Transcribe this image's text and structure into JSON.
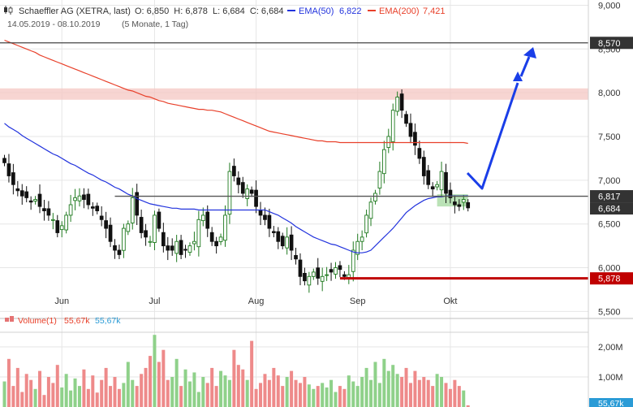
{
  "header": {
    "icon": "candlestick-chart-icon",
    "instrument": "Schaeffler AG (XETRA, last)",
    "ohlc": "O: 6,850  H: 6,878  L: 6,684  C: 6,684",
    "ema50_label": "EMA(50)",
    "ema50_value": "6,822",
    "ema200_label": "EMA(200)",
    "ema200_value": "7,421",
    "date_range": "14.05.2019 - 08.10.2019",
    "period": "(5 Monate, 1 Tag)"
  },
  "colors": {
    "up": "#1f7a1f",
    "down": "#111111",
    "ema50": "#2233dd",
    "ema200": "#e8402a",
    "support_line": "#c00000",
    "arrow": "#1a3ee8",
    "resistance_zone": "#f4c7c3",
    "target_zone": "#a9dba4",
    "vol_up": "#8fd18a",
    "vol_down": "#ee8a8a"
  },
  "volume": {
    "label": "Volume(1)",
    "value_red": "55,67k",
    "value_blue": "55,67k",
    "axis_ticks": [
      "2,00M",
      "1,00M"
    ],
    "badge": "55,67k"
  },
  "chart_data": {
    "type": "candlestick",
    "ylim": [
      5.42,
      9.06
    ],
    "y_ticks": [
      {
        "value": 9.0,
        "label": "9,000"
      },
      {
        "value": 8.5,
        "label": "8,500"
      },
      {
        "value": 8.0,
        "label": "8,000"
      },
      {
        "value": 7.5,
        "label": "7,500"
      },
      {
        "value": 7.0,
        "label": "7,000"
      },
      {
        "value": 6.5,
        "label": "6,500"
      },
      {
        "value": 6.0,
        "label": "6,000"
      },
      {
        "value": 5.5,
        "label": "5,500"
      }
    ],
    "x_ticks": [
      {
        "bar": 13,
        "label": "Jun"
      },
      {
        "bar": 34,
        "label": "Jul"
      },
      {
        "bar": 57,
        "label": "Aug"
      },
      {
        "bar": 80,
        "label": "Sep"
      },
      {
        "bar": 101,
        "label": "Okt"
      }
    ],
    "bars_shown": 106,
    "series": {
      "close": [
        7.2,
        7.05,
        6.95,
        6.88,
        6.82,
        6.8,
        6.75,
        6.78,
        6.7,
        6.65,
        6.6,
        6.55,
        6.4,
        6.48,
        6.6,
        6.72,
        6.8,
        6.82,
        6.78,
        6.72,
        6.68,
        6.65,
        6.55,
        6.45,
        6.3,
        6.2,
        6.15,
        6.45,
        6.5,
        6.8,
        6.6,
        6.4,
        6.35,
        6.3,
        6.6,
        6.45,
        6.25,
        6.2,
        6.2,
        6.3,
        6.15,
        6.2,
        6.25,
        6.3,
        6.55,
        6.6,
        6.45,
        6.3,
        6.25,
        6.35,
        6.6,
        7.1,
        7.05,
        6.95,
        6.85,
        6.9,
        6.85,
        6.7,
        6.6,
        6.55,
        6.45,
        6.4,
        6.3,
        6.25,
        6.35,
        6.2,
        6.1,
        5.9,
        5.85,
        5.9,
        5.95,
        5.88,
        5.9,
        5.92,
        5.95,
        6.0,
        5.98,
        5.9,
        5.92,
        6.2,
        6.3,
        6.35,
        6.6,
        6.75,
        6.85,
        7.1,
        7.35,
        7.5,
        7.8,
        7.95,
        7.8,
        7.65,
        7.5,
        7.4,
        7.25,
        7.05,
        6.95,
        6.9,
        6.95,
        7.1,
        6.85,
        6.8,
        6.72,
        6.7,
        6.78,
        6.684
      ],
      "ema50": [
        7.65,
        7.61,
        7.58,
        7.55,
        7.51,
        7.48,
        7.45,
        7.42,
        7.39,
        7.36,
        7.33,
        7.3,
        7.28,
        7.25,
        7.22,
        7.19,
        7.17,
        7.14,
        7.11,
        7.08,
        7.06,
        7.03,
        7.0,
        6.98,
        6.95,
        6.92,
        6.9,
        6.87,
        6.84,
        6.82,
        6.79,
        6.77,
        6.75,
        6.73,
        6.72,
        6.71,
        6.7,
        6.69,
        6.68,
        6.68,
        6.67,
        6.67,
        6.67,
        6.67,
        6.66,
        6.66,
        6.66,
        6.66,
        6.66,
        6.66,
        6.66,
        6.66,
        6.66,
        6.66,
        6.66,
        6.66,
        6.66,
        6.66,
        6.66,
        6.66,
        6.64,
        6.62,
        6.6,
        6.57,
        6.54,
        6.51,
        6.47,
        6.44,
        6.41,
        6.38,
        6.35,
        6.33,
        6.31,
        6.29,
        6.27,
        6.26,
        6.24,
        6.22,
        6.2,
        6.18,
        6.17,
        6.17,
        6.18,
        6.2,
        6.25,
        6.3,
        6.35,
        6.4,
        6.45,
        6.51,
        6.57,
        6.63,
        6.67,
        6.71,
        6.74,
        6.77,
        6.79,
        6.8,
        6.81,
        6.81,
        6.82,
        6.82,
        6.82,
        6.82,
        6.82,
        6.822
      ],
      "ema200": [
        8.6,
        8.58,
        8.56,
        8.54,
        8.52,
        8.5,
        8.48,
        8.46,
        8.43,
        8.41,
        8.39,
        8.37,
        8.35,
        8.33,
        8.31,
        8.29,
        8.27,
        8.25,
        8.23,
        8.21,
        8.19,
        8.17,
        8.15,
        8.13,
        8.11,
        8.09,
        8.07,
        8.05,
        8.03,
        8.02,
        8.0,
        7.98,
        7.96,
        7.95,
        7.93,
        7.91,
        7.9,
        7.88,
        7.87,
        7.86,
        7.85,
        7.84,
        7.83,
        7.82,
        7.81,
        7.81,
        7.8,
        7.8,
        7.79,
        7.78,
        7.76,
        7.74,
        7.72,
        7.7,
        7.68,
        7.66,
        7.64,
        7.62,
        7.6,
        7.58,
        7.56,
        7.55,
        7.54,
        7.53,
        7.52,
        7.51,
        7.5,
        7.49,
        7.48,
        7.47,
        7.46,
        7.45,
        7.45,
        7.44,
        7.44,
        7.44,
        7.43,
        7.43,
        7.43,
        7.43,
        7.43,
        7.43,
        7.43,
        7.43,
        7.43,
        7.43,
        7.43,
        7.43,
        7.43,
        7.43,
        7.43,
        7.43,
        7.43,
        7.43,
        7.43,
        7.43,
        7.43,
        7.43,
        7.43,
        7.43,
        7.43,
        7.43,
        7.43,
        7.43,
        7.43,
        7.421
      ],
      "volume_k": [
        850,
        1600,
        700,
        1300,
        500,
        1100,
        900,
        600,
        1200,
        400,
        1000,
        800,
        1400,
        650,
        1100,
        550,
        950,
        700,
        1250,
        600,
        1050,
        480,
        900,
        1300,
        700,
        1000,
        600,
        800,
        1500,
        900,
        700,
        1100,
        1300,
        1700,
        2400,
        1500,
        1900,
        900,
        1000,
        1600,
        700,
        1250,
        850,
        1150,
        500,
        1000,
        800,
        1300,
        700,
        1200,
        1050,
        900,
        1900,
        1400,
        1250,
        900,
        2200,
        600,
        800,
        1100,
        900,
        1300,
        1050,
        700,
        1000,
        1200,
        900,
        800,
        1000,
        750,
        600,
        700,
        800,
        650,
        900,
        500,
        700,
        600,
        1050,
        850,
        700,
        1000,
        1300,
        900,
        1500,
        800,
        1600,
        1200,
        1400,
        1100,
        1000,
        1300,
        800,
        1200,
        900,
        1000,
        900,
        700,
        1100,
        1000,
        800,
        600,
        900,
        700,
        550,
        56
      ]
    },
    "levels": [
      {
        "value": 8.57,
        "label": "8,570"
      },
      {
        "value": 6.817,
        "label": "6,817"
      },
      {
        "value": 6.684,
        "label": "6,684"
      },
      {
        "value": 5.878,
        "label": "5,878"
      }
    ],
    "resistance_zone": [
      7.92,
      8.05
    ],
    "target_zone": [
      6.7,
      6.84
    ]
  }
}
